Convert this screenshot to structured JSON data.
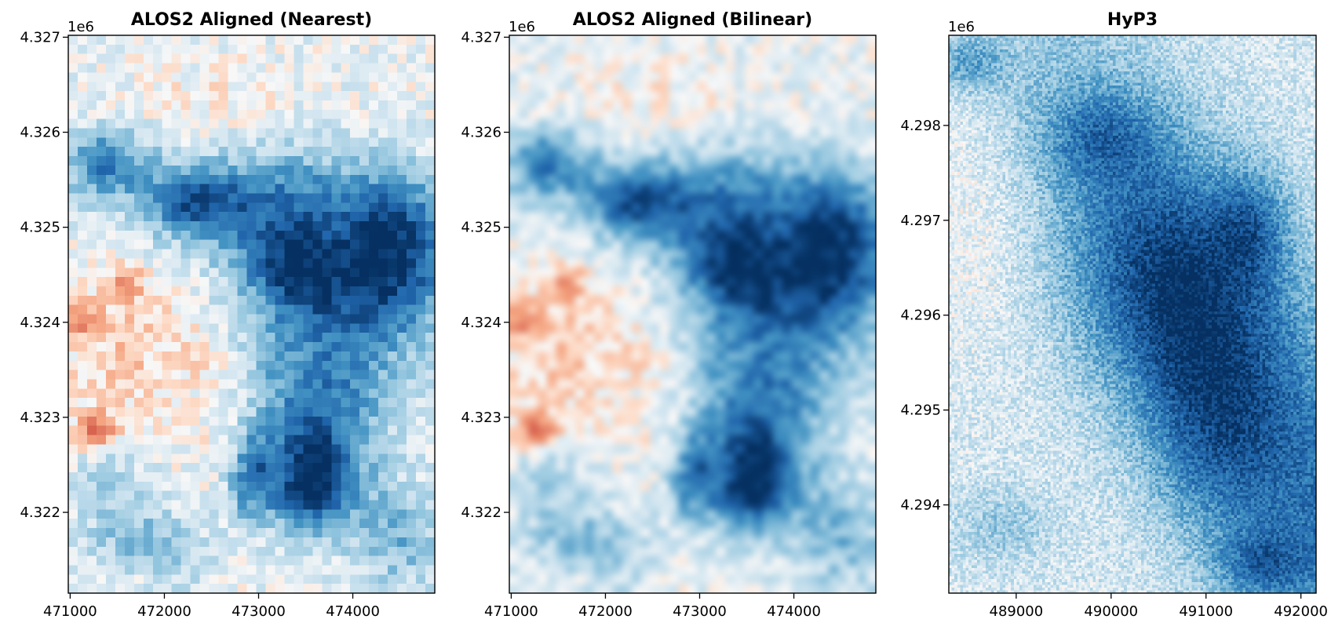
{
  "colors": {
    "colormap": "RdBu",
    "deep_blue": "#08306b",
    "mid_blue": "#2171b5",
    "light_blue": "#c6dbef",
    "neutral": "#f7f7f7",
    "light_red": "#fddbc7",
    "red": "#ef8a62",
    "frame": "#000000",
    "background": "#ffffff"
  },
  "chart_data": [
    {
      "type": "heatmap",
      "title": "ALOS2 Aligned (Nearest)",
      "interpolation": "nearest",
      "x_ticks": [
        471000,
        472000,
        473000,
        474000
      ],
      "x_tick_labels": [
        "471000",
        "472000",
        "473000",
        "474000"
      ],
      "xlim": [
        470980,
        474870
      ],
      "y_ticks": [
        4.322,
        4.323,
        4.324,
        4.325,
        4.326,
        4.327
      ],
      "y_tick_labels": [
        "4.322",
        "4.323",
        "4.324",
        "4.325",
        "4.326",
        "4.327"
      ],
      "ylim": [
        4.32115,
        4.32702
      ],
      "y_offset_label": "1e6",
      "grid": false,
      "xlabel": "",
      "ylabel": ""
    },
    {
      "type": "heatmap",
      "title": "ALOS2 Aligned (Bilinear)",
      "interpolation": "bilinear",
      "x_ticks": [
        471000,
        472000,
        473000,
        474000
      ],
      "x_tick_labels": [
        "471000",
        "472000",
        "473000",
        "474000"
      ],
      "xlim": [
        470980,
        474870
      ],
      "y_ticks": [
        4.322,
        4.323,
        4.324,
        4.325,
        4.326,
        4.327
      ],
      "y_tick_labels": [
        "4.322",
        "4.323",
        "4.324",
        "4.325",
        "4.326",
        "4.327"
      ],
      "ylim": [
        4.32115,
        4.32702
      ],
      "y_offset_label": "1e6",
      "grid": false,
      "xlabel": "",
      "ylabel": ""
    },
    {
      "type": "heatmap",
      "title": "HyP3",
      "interpolation": "nearest",
      "x_ticks": [
        489000,
        490000,
        491000,
        492000
      ],
      "x_tick_labels": [
        "489000",
        "490000",
        "491000",
        "492000"
      ],
      "xlim": [
        488290,
        492160
      ],
      "y_ticks": [
        4.294,
        4.295,
        4.296,
        4.297,
        4.298
      ],
      "y_tick_labels": [
        "4.294",
        "4.295",
        "4.296",
        "4.297",
        "4.298"
      ],
      "ylim": [
        4.29307,
        4.29895
      ],
      "y_offset_label": "1e6",
      "grid": false,
      "xlabel": "",
      "ylabel": ""
    }
  ]
}
